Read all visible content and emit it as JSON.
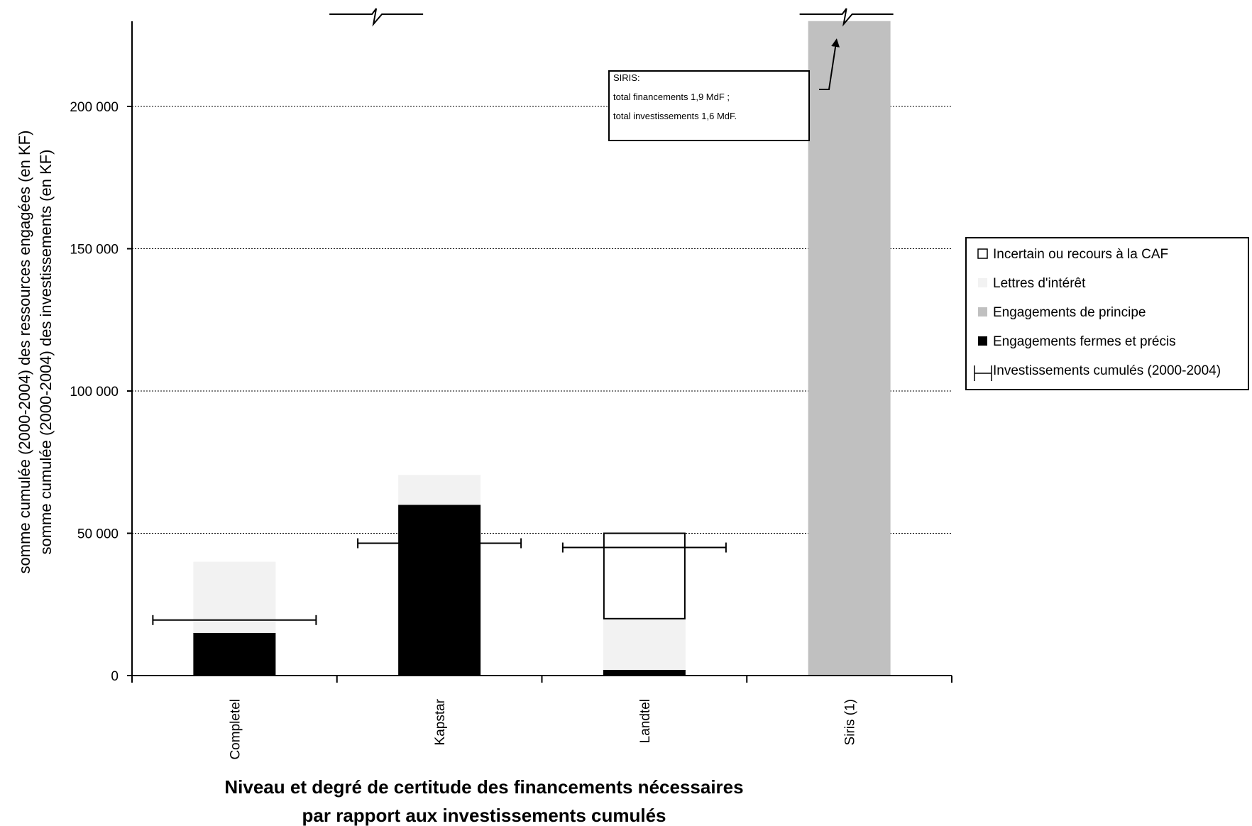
{
  "chart_data": {
    "type": "bar",
    "stacked": true,
    "categories": [
      "Completel",
      "Kapstar",
      "Landtel",
      "Siris (1)"
    ],
    "series": [
      {
        "name": "Engagements fermes et précis",
        "color": "#000000",
        "values": [
          15000,
          60000,
          2000,
          0
        ]
      },
      {
        "name": "Engagements de principe",
        "color": "#c0c0c0",
        "values": [
          0,
          0,
          0,
          1900000
        ]
      },
      {
        "name": "Lettres d'intérêt",
        "color": "#f2f2f2",
        "values": [
          25000,
          10500,
          18000,
          0
        ]
      },
      {
        "name": "Incertain ou recours à la CAF",
        "color": "#ffffff",
        "outlined": true,
        "values": [
          0,
          0,
          30000,
          0
        ]
      }
    ],
    "investments": {
      "name": "Investissements cumulés (2000-2004)",
      "values": [
        19500,
        46500,
        45000,
        1600000
      ]
    },
    "ylim": [
      0,
      230000
    ],
    "yticks": [
      0,
      50000,
      100000,
      150000,
      200000
    ],
    "ytick_labels": [
      "0",
      "50 000",
      "100 000",
      "150 000",
      "200 000"
    ],
    "grid": "horizontal dotted",
    "legend_position": "right",
    "legend_order": [
      "Incertain ou recours à la CAF",
      "Lettres d'intérêt",
      "Engagements de principe",
      "Engagements fermes et précis",
      "Investissements cumulés (2000-2004)"
    ],
    "ylabel_lines": [
      "somme cumulée (2000-2004) des ressources engagées (en KF)",
      "somme cumulée (2000-2004) des investissements (en KF)"
    ],
    "xlabel_lines": [
      "Niveau et degré de certitude des financements nécessaires",
      "par rapport aux investissements cumulés"
    ],
    "annotation": {
      "lines": [
        "SIRIS:",
        "total financements  1,9 MdF ;",
        "total investissements  1,6 MdF."
      ]
    },
    "axis_breaks": [
      "Kapstar",
      "Siris (1)"
    ]
  }
}
